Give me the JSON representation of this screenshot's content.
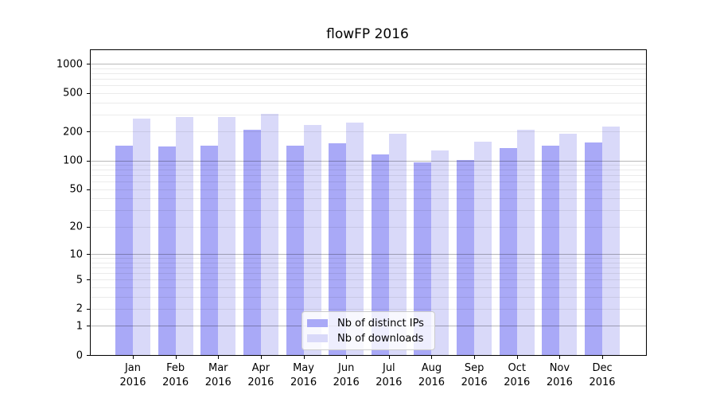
{
  "title": "flowFP 2016",
  "chart_data": {
    "type": "bar",
    "title": "flowFP 2016",
    "scale": "log1p",
    "grid": true,
    "categories": [
      "Jan",
      "Feb",
      "Mar",
      "Apr",
      "May",
      "Jun",
      "Jul",
      "Aug",
      "Sep",
      "Oct",
      "Nov",
      "Dec"
    ],
    "year_label": "2016",
    "series": [
      {
        "name": "Nb of distinct IPs",
        "color": "#a9a9f7",
        "values": [
          144,
          141,
          144,
          208,
          144,
          150,
          115,
          96,
          102,
          136,
          142,
          154
        ]
      },
      {
        "name": "Nb of downloads",
        "color": "#d9d9f9",
        "values": [
          275,
          283,
          285,
          308,
          235,
          246,
          190,
          128,
          156,
          207,
          189,
          226
        ]
      }
    ],
    "yticks": [
      0,
      1,
      2,
      5,
      10,
      20,
      50,
      100,
      200,
      500,
      1000
    ],
    "ytick_major": [
      1,
      10,
      100,
      1000
    ],
    "ylim": [
      0,
      1400
    ],
    "xlabel": "",
    "ylabel": "",
    "legend_position": "bottom-center"
  }
}
